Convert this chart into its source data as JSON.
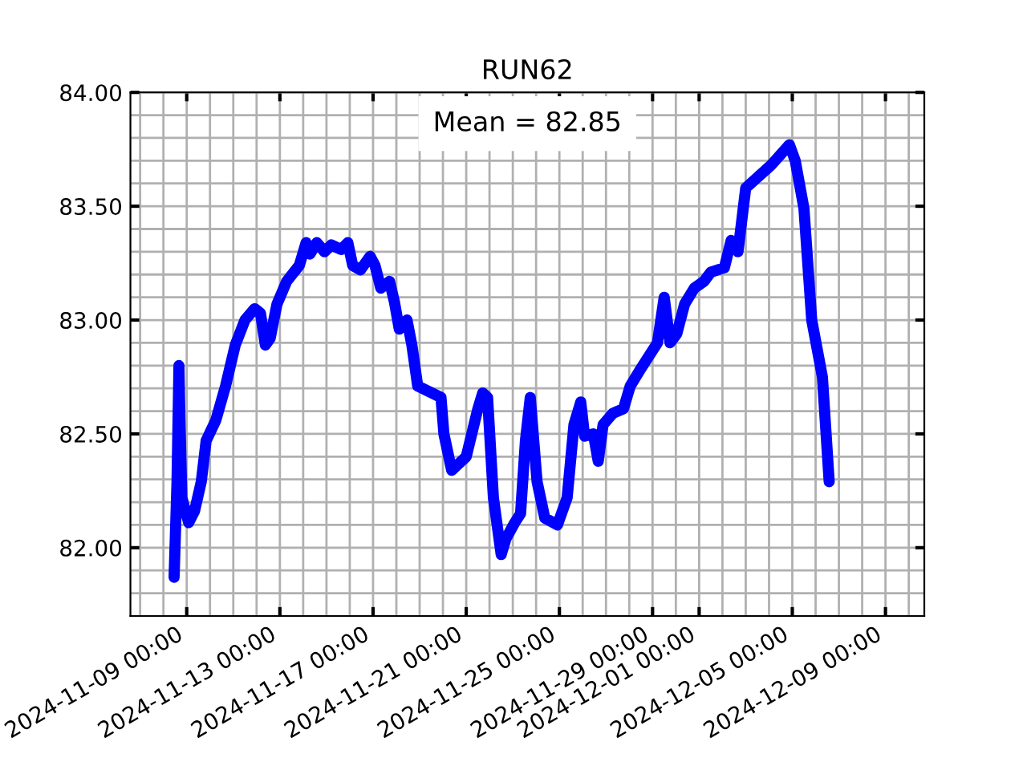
{
  "chart_data": {
    "type": "line",
    "title": "RUN62",
    "annotations": [
      "Mean = 82.85"
    ],
    "series": [
      {
        "color": "#0000ff",
        "x": [
          "2024-11-08T11:00",
          "2024-11-08T14:00",
          "2024-11-08T16:00",
          "2024-11-08T17:00",
          "2024-11-08T19:00",
          "2024-11-09T02:00",
          "2024-11-09T08:00",
          "2024-11-09T15:00",
          "2024-11-09T20:00",
          "2024-11-10T06:00",
          "2024-11-10T16:00",
          "2024-11-11T02:00",
          "2024-11-11T12:00",
          "2024-11-11T22:00",
          "2024-11-12T04:00",
          "2024-11-12T09:00",
          "2024-11-12T14:00",
          "2024-11-12T21:00",
          "2024-11-13T07:00",
          "2024-11-13T20:00",
          "2024-11-14T03:00",
          "2024-11-14T07:00",
          "2024-11-14T14:00",
          "2024-11-14T22:00",
          "2024-11-15T05:00",
          "2024-11-15T15:00",
          "2024-11-15T22:00",
          "2024-11-16T03:00",
          "2024-11-16T11:00",
          "2024-11-16T21:00",
          "2024-11-17T02:00",
          "2024-11-17T08:00",
          "2024-11-17T17:00",
          "2024-11-17T22:00",
          "2024-11-18T03:00",
          "2024-11-18T11:00",
          "2024-11-18T16:00",
          "2024-11-18T22:00",
          "2024-11-19T22:00",
          "2024-11-20T01:00",
          "2024-11-20T09:00",
          "2024-11-21T00:00",
          "2024-11-21T12:00",
          "2024-11-21T17:00",
          "2024-11-21T22:00",
          "2024-11-22T04:00",
          "2024-11-22T12:00",
          "2024-11-22T17:00",
          "2024-11-23T02:00",
          "2024-11-23T08:00",
          "2024-11-23T13:00",
          "2024-11-23T18:00",
          "2024-11-24T01:00",
          "2024-11-24T09:00",
          "2024-11-24T22:00",
          "2024-11-25T08:00",
          "2024-11-25T15:00",
          "2024-11-25T22:00",
          "2024-11-26T02:00",
          "2024-11-26T11:00",
          "2024-11-26T16:00",
          "2024-11-26T21:00",
          "2024-11-27T07:00",
          "2024-11-27T18:00",
          "2024-11-28T01:00",
          "2024-11-28T11:00",
          "2024-11-29T05:00",
          "2024-11-29T12:00",
          "2024-11-29T18:00",
          "2024-11-30T01:00",
          "2024-11-30T09:00",
          "2024-11-30T19:00",
          "2024-12-01T05:00",
          "2024-12-01T12:00",
          "2024-12-02T02:00",
          "2024-12-02T09:00",
          "2024-12-02T16:00",
          "2024-12-03T00:00",
          "2024-12-04T02:00",
          "2024-12-04T21:00",
          "2024-12-05T03:00",
          "2024-12-05T12:00",
          "2024-12-05T20:00",
          "2024-12-06T07:00",
          "2024-12-06T14:00"
        ],
        "values": [
          81.87,
          82.29,
          82.8,
          82.57,
          82.22,
          82.11,
          82.16,
          82.29,
          82.47,
          82.56,
          82.71,
          82.89,
          83.0,
          83.05,
          83.03,
          82.89,
          82.92,
          83.07,
          83.17,
          83.24,
          83.34,
          83.29,
          83.34,
          83.3,
          83.33,
          83.31,
          83.34,
          83.24,
          83.22,
          83.28,
          83.24,
          83.14,
          83.17,
          83.08,
          82.96,
          83.0,
          82.89,
          82.71,
          82.66,
          82.5,
          82.34,
          82.4,
          82.61,
          82.68,
          82.66,
          82.22,
          81.97,
          82.04,
          82.11,
          82.15,
          82.47,
          82.66,
          82.29,
          82.13,
          82.1,
          82.22,
          82.54,
          82.64,
          82.49,
          82.5,
          82.38,
          82.54,
          82.59,
          82.61,
          82.71,
          82.78,
          82.9,
          83.1,
          82.9,
          82.94,
          83.07,
          83.14,
          83.17,
          83.21,
          83.23,
          83.35,
          83.3,
          83.58,
          83.68,
          83.77,
          83.7,
          83.49,
          83.0,
          82.75,
          82.29
        ]
      }
    ],
    "xlim": [
      "2024-11-06T14:00",
      "2024-12-10T16:00"
    ],
    "xticks": [
      {
        "value": "2024-11-07",
        "label": null
      },
      {
        "value": "2024-11-08",
        "label": null
      },
      {
        "value": "2024-11-09",
        "label": "2024-11-09 00:00"
      },
      {
        "value": "2024-11-10",
        "label": null
      },
      {
        "value": "2024-11-11",
        "label": null
      },
      {
        "value": "2024-11-12",
        "label": null
      },
      {
        "value": "2024-11-13",
        "label": "2024-11-13 00:00"
      },
      {
        "value": "2024-11-14",
        "label": null
      },
      {
        "value": "2024-11-15",
        "label": null
      },
      {
        "value": "2024-11-16",
        "label": null
      },
      {
        "value": "2024-11-17",
        "label": "2024-11-17 00:00"
      },
      {
        "value": "2024-11-18",
        "label": null
      },
      {
        "value": "2024-11-19",
        "label": null
      },
      {
        "value": "2024-11-20",
        "label": null
      },
      {
        "value": "2024-11-21",
        "label": "2024-11-21 00:00"
      },
      {
        "value": "2024-11-22",
        "label": null
      },
      {
        "value": "2024-11-23",
        "label": null
      },
      {
        "value": "2024-11-24",
        "label": null
      },
      {
        "value": "2024-11-25",
        "label": "2024-11-25 00:00"
      },
      {
        "value": "2024-11-26",
        "label": null
      },
      {
        "value": "2024-11-27",
        "label": null
      },
      {
        "value": "2024-11-28",
        "label": null
      },
      {
        "value": "2024-11-29",
        "label": "2024-11-29 00:00"
      },
      {
        "value": "2024-11-30",
        "label": null
      },
      {
        "value": "2024-12-01",
        "label": "2024-12-01 00:00"
      },
      {
        "value": "2024-12-02",
        "label": null
      },
      {
        "value": "2024-12-03",
        "label": null
      },
      {
        "value": "2024-12-04",
        "label": null
      },
      {
        "value": "2024-12-05",
        "label": "2024-12-05 00:00"
      },
      {
        "value": "2024-12-06",
        "label": null
      },
      {
        "value": "2024-12-07",
        "label": null
      },
      {
        "value": "2024-12-08",
        "label": null
      },
      {
        "value": "2024-12-09",
        "label": "2024-12-09 00:00"
      },
      {
        "value": "2024-12-10",
        "label": null
      }
    ],
    "ylim": [
      81.7,
      84.0
    ],
    "yticks": [
      {
        "value": 81.8,
        "label": null
      },
      {
        "value": 81.9,
        "label": null
      },
      {
        "value": 82.0,
        "label": "82.00"
      },
      {
        "value": 82.1,
        "label": null
      },
      {
        "value": 82.2,
        "label": null
      },
      {
        "value": 82.3,
        "label": null
      },
      {
        "value": 82.4,
        "label": null
      },
      {
        "value": 82.5,
        "label": "82.50"
      },
      {
        "value": 82.6,
        "label": null
      },
      {
        "value": 82.7,
        "label": null
      },
      {
        "value": 82.8,
        "label": null
      },
      {
        "value": 82.9,
        "label": null
      },
      {
        "value": 83.0,
        "label": "83.00"
      },
      {
        "value": 83.1,
        "label": null
      },
      {
        "value": 83.2,
        "label": null
      },
      {
        "value": 83.3,
        "label": null
      },
      {
        "value": 83.4,
        "label": null
      },
      {
        "value": 83.5,
        "label": "83.50"
      },
      {
        "value": 83.6,
        "label": null
      },
      {
        "value": 83.7,
        "label": null
      },
      {
        "value": 83.8,
        "label": null
      },
      {
        "value": 83.9,
        "label": null
      },
      {
        "value": 84.0,
        "label": "84.00"
      }
    ],
    "grid": true,
    "marker": "none",
    "line_style": "solid"
  }
}
